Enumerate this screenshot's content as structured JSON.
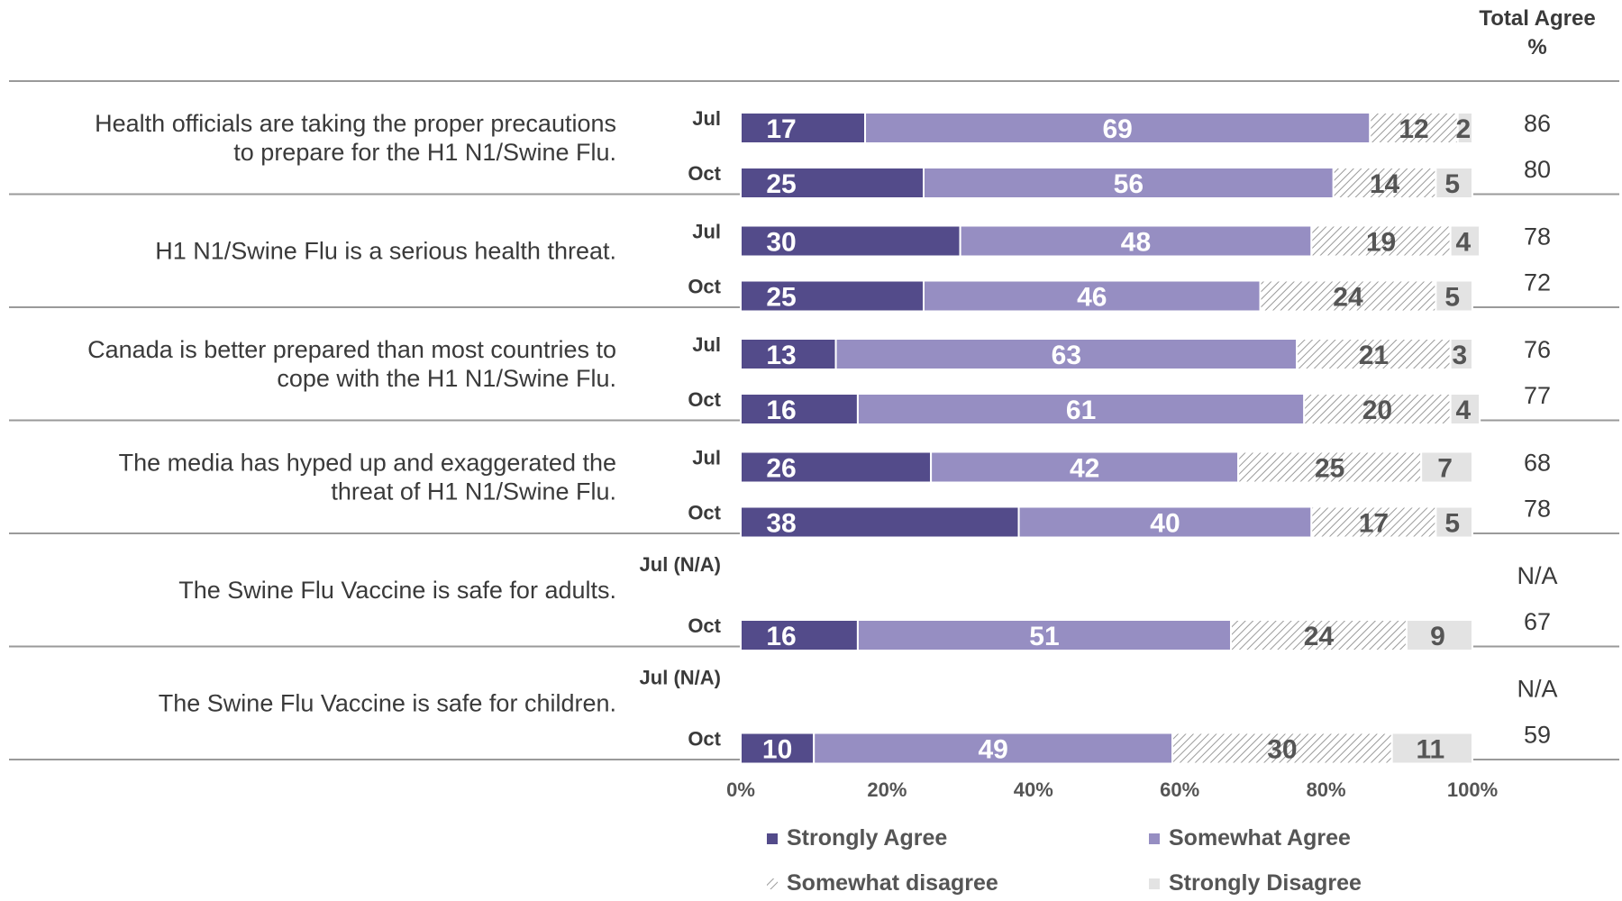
{
  "chart_data": {
    "type": "bar",
    "orientation": "horizontal",
    "stacked": true,
    "total_header": [
      "Total Agree",
      "%"
    ],
    "x_ticks": [
      "0%",
      "20%",
      "40%",
      "60%",
      "80%",
      "100%"
    ],
    "xlim": [
      0,
      100
    ],
    "legend_position": "bottom",
    "series": [
      {
        "name": "Strongly Agree",
        "color": "#534b8a",
        "pattern": "solid"
      },
      {
        "name": "Somewhat Agree",
        "color": "#968ec2",
        "pattern": "solid"
      },
      {
        "name": "Somewhat disagree",
        "color": "#c8c8c8",
        "pattern": "hatch"
      },
      {
        "name": "Strongly Disagree",
        "color": "#e3e3e3",
        "pattern": "solid"
      }
    ],
    "groups": [
      {
        "statement": [
          "Health officials are taking the proper precautions",
          "to prepare for the H1 N1/Swine Flu."
        ],
        "rows": [
          {
            "period": "Jul",
            "values": [
              17,
              69,
              12,
              2
            ],
            "total": "86"
          },
          {
            "period": "Oct",
            "values": [
              25,
              56,
              14,
              5
            ],
            "total": "80"
          }
        ]
      },
      {
        "statement": [
          "H1 N1/Swine Flu is a serious health threat."
        ],
        "rows": [
          {
            "period": "Jul",
            "values": [
              30,
              48,
              19,
              4
            ],
            "total": "78"
          },
          {
            "period": "Oct",
            "values": [
              25,
              46,
              24,
              5
            ],
            "total": "72"
          }
        ]
      },
      {
        "statement": [
          "Canada is better prepared than most countries to",
          "cope with the H1 N1/Swine Flu."
        ],
        "rows": [
          {
            "period": "Jul",
            "values": [
              13,
              63,
              21,
              3
            ],
            "total": "76"
          },
          {
            "period": "Oct",
            "values": [
              16,
              61,
              20,
              4
            ],
            "total": "77"
          }
        ]
      },
      {
        "statement": [
          "The media has hyped up and exaggerated the",
          "threat of H1 N1/Swine Flu."
        ],
        "rows": [
          {
            "period": "Jul",
            "values": [
              26,
              42,
              25,
              7
            ],
            "total": "68"
          },
          {
            "period": "Oct",
            "values": [
              38,
              40,
              17,
              5
            ],
            "total": "78"
          }
        ]
      },
      {
        "statement": [
          "The Swine Flu Vaccine is safe for adults."
        ],
        "rows": [
          {
            "period": "Jul (N/A)",
            "values": null,
            "total": "N/A"
          },
          {
            "period": "Oct",
            "values": [
              16,
              51,
              24,
              9
            ],
            "total": "67"
          }
        ]
      },
      {
        "statement": [
          "The Swine Flu Vaccine is safe for children."
        ],
        "rows": [
          {
            "period": "Jul (N/A)",
            "values": null,
            "total": "N/A"
          },
          {
            "period": "Oct",
            "values": [
              10,
              49,
              30,
              11
            ],
            "total": "59"
          }
        ]
      }
    ]
  }
}
